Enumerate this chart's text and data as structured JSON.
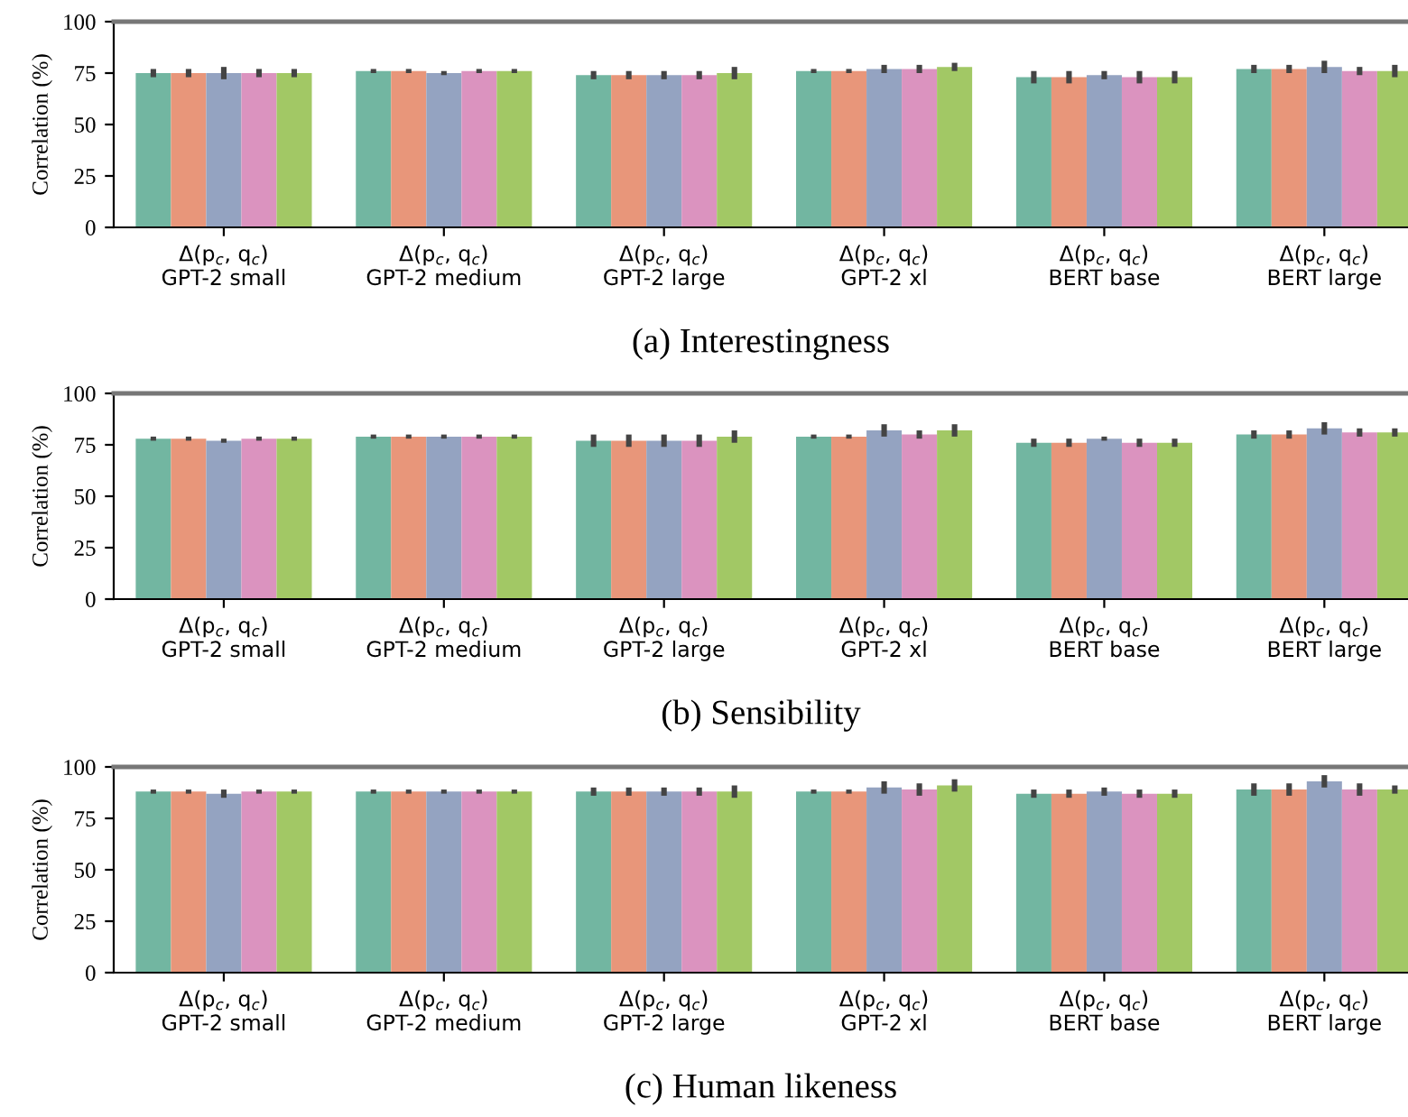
{
  "chart_data": [
    {
      "type": "bar",
      "title": "(a) Interestingness",
      "ylabel": "Correlation (%)",
      "ylim": [
        0,
        100
      ],
      "yticks": [
        0,
        25,
        50,
        75,
        100
      ],
      "grid": false,
      "categories": [
        "Δ(p$_{c}$, q$_{c}$)\nGPT-2 small",
        "Δ(p$_{c}$, q$_{c}$)\nGPT-2 medium",
        "Δ(p$_{c}$, q$_{c}$)\nGPT-2 large",
        "Δ(p$_{c}$, q$_{c}$)\nGPT-2 xl",
        "Δ(p$_{c}$, q$_{c}$)\nBERT base",
        "Δ(p$_{c}$, q$_{c}$)\nBERT large"
      ],
      "series": [
        {
          "color": "#72b6a1",
          "values": [
            75,
            76,
            74,
            76,
            73,
            77
          ],
          "errors": [
            2,
            1,
            2,
            1,
            3,
            2
          ]
        },
        {
          "color": "#e8967a",
          "values": [
            75,
            76,
            74,
            76,
            73,
            77
          ],
          "errors": [
            2,
            1,
            2,
            1,
            3,
            2
          ]
        },
        {
          "color": "#94a3c1",
          "values": [
            75,
            75,
            74,
            77,
            74,
            78
          ],
          "errors": [
            3,
            1,
            2,
            2,
            2,
            3
          ]
        },
        {
          "color": "#db93bf",
          "values": [
            75,
            76,
            74,
            77,
            73,
            76
          ],
          "errors": [
            2,
            1,
            2,
            2,
            3,
            2
          ]
        },
        {
          "color": "#a2c865",
          "values": [
            75,
            76,
            75,
            78,
            73,
            76
          ],
          "errors": [
            2,
            1,
            3,
            2,
            3,
            3
          ]
        }
      ]
    },
    {
      "type": "bar",
      "title": "(b) Sensibility",
      "ylabel": "Correlation (%)",
      "ylim": [
        0,
        100
      ],
      "yticks": [
        0,
        25,
        50,
        75,
        100
      ],
      "grid": false,
      "categories": [
        "Δ(p$_{c}$, q$_{c}$)\nGPT-2 small",
        "Δ(p$_{c}$, q$_{c}$)\nGPT-2 medium",
        "Δ(p$_{c}$, q$_{c}$)\nGPT-2 large",
        "Δ(p$_{c}$, q$_{c}$)\nGPT-2 xl",
        "Δ(p$_{c}$, q$_{c}$)\nBERT base",
        "Δ(p$_{c}$, q$_{c}$)\nBERT large"
      ],
      "series": [
        {
          "color": "#72b6a1",
          "values": [
            78,
            79,
            77,
            79,
            76,
            80
          ],
          "errors": [
            1,
            1,
            3,
            1,
            2,
            2
          ]
        },
        {
          "color": "#e8967a",
          "values": [
            78,
            79,
            77,
            79,
            76,
            80
          ],
          "errors": [
            1,
            1,
            3,
            1,
            2,
            2
          ]
        },
        {
          "color": "#94a3c1",
          "values": [
            77,
            79,
            77,
            82,
            78,
            83
          ],
          "errors": [
            1,
            1,
            3,
            3,
            1,
            3
          ]
        },
        {
          "color": "#db93bf",
          "values": [
            78,
            79,
            77,
            80,
            76,
            81
          ],
          "errors": [
            1,
            1,
            3,
            2,
            2,
            2
          ]
        },
        {
          "color": "#a2c865",
          "values": [
            78,
            79,
            79,
            82,
            76,
            81
          ],
          "errors": [
            1,
            1,
            3,
            3,
            2,
            2
          ]
        }
      ]
    },
    {
      "type": "bar",
      "title": "(c) Human likeness",
      "ylabel": "Correlation (%)",
      "ylim": [
        0,
        100
      ],
      "yticks": [
        0,
        25,
        50,
        75,
        100
      ],
      "grid": false,
      "categories": [
        "Δ(p$_{c}$, q$_{c}$)\nGPT-2 small",
        "Δ(p$_{c}$, q$_{c}$)\nGPT-2 medium",
        "Δ(p$_{c}$, q$_{c}$)\nGPT-2 large",
        "Δ(p$_{c}$, q$_{c}$)\nGPT-2 xl",
        "Δ(p$_{c}$, q$_{c}$)\nBERT base",
        "Δ(p$_{c}$, q$_{c}$)\nBERT large"
      ],
      "series": [
        {
          "color": "#72b6a1",
          "values": [
            88,
            88,
            88,
            88,
            87,
            89
          ],
          "errors": [
            1,
            1,
            2,
            1,
            2,
            3
          ]
        },
        {
          "color": "#e8967a",
          "values": [
            88,
            88,
            88,
            88,
            87,
            89
          ],
          "errors": [
            1,
            1,
            2,
            1,
            2,
            3
          ]
        },
        {
          "color": "#94a3c1",
          "values": [
            87,
            88,
            88,
            90,
            88,
            93
          ],
          "errors": [
            2,
            1,
            2,
            3,
            2,
            3
          ]
        },
        {
          "color": "#db93bf",
          "values": [
            88,
            88,
            88,
            89,
            87,
            89
          ],
          "errors": [
            1,
            1,
            2,
            3,
            2,
            3
          ]
        },
        {
          "color": "#a2c865",
          "values": [
            88,
            88,
            88,
            91,
            87,
            89
          ],
          "errors": [
            1,
            1,
            3,
            3,
            2,
            2
          ]
        }
      ]
    }
  ]
}
